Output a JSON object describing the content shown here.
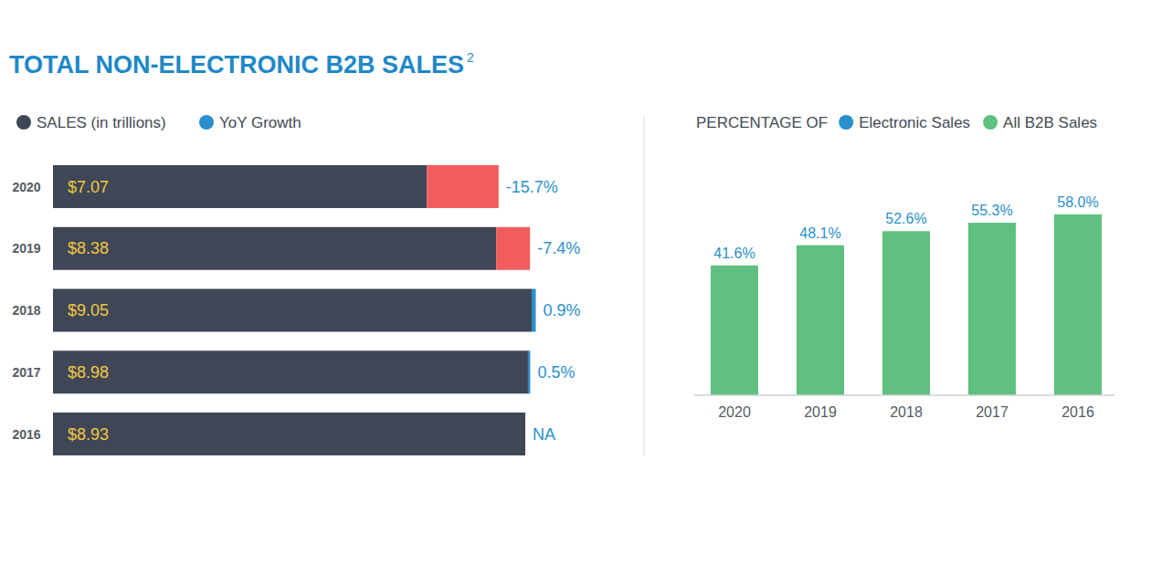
{
  "header": {
    "title": "TOTAL NON-ELECTRONIC B2B SALES",
    "footnote_mark": "2"
  },
  "chart_data": [
    {
      "type": "bar",
      "orientation": "horizontal",
      "data_labels": true,
      "tick_labels": "y",
      "categories": [
        "2020",
        "2019",
        "2018",
        "2017",
        "2016"
      ],
      "xlim": [
        0,
        10
      ],
      "y2lim": [
        -20,
        20
      ],
      "series": [
        {
          "name": "SALES (in trillions)",
          "color": "#3f4756",
          "values": [
            7.07,
            8.38,
            9.05,
            8.98,
            8.93
          ],
          "value_labels": [
            "$7.07",
            "$8.38",
            "$9.05",
            "$8.98",
            "$8.93"
          ]
        },
        {
          "name": "YoY Growth",
          "color": "#2a8fcc",
          "axis": "y2",
          "colors": [
            "#f25c5c",
            "#f25c5c",
            "#2a8fcc",
            "#2a8fcc",
            "#2a8fcc"
          ],
          "values": [
            -15.7,
            -7.4,
            0.9,
            0.5,
            null
          ],
          "value_labels": [
            "-15.7%",
            "-7.4%",
            "0.9%",
            "0.5%",
            "NA"
          ]
        }
      ]
    },
    {
      "type": "bar",
      "subtitle": "PERCENTAGE OF",
      "data_labels": true,
      "tick_labels": "x",
      "categories": [
        "2020",
        "2019",
        "2018",
        "2017",
        "2016"
      ],
      "ylim": [
        0,
        60
      ],
      "series": [
        {
          "name": "Electronic Sales",
          "color": "#2a8fcc",
          "values": [
            null,
            null,
            null,
            null,
            null
          ]
        },
        {
          "name": "All B2B Sales",
          "color": "#5fc07f",
          "values": [
            41.6,
            48.1,
            52.6,
            55.3,
            58.0
          ],
          "value_labels": [
            "41.6%",
            "48.1%",
            "52.6%",
            "55.3%",
            "58.0%"
          ]
        }
      ]
    }
  ]
}
